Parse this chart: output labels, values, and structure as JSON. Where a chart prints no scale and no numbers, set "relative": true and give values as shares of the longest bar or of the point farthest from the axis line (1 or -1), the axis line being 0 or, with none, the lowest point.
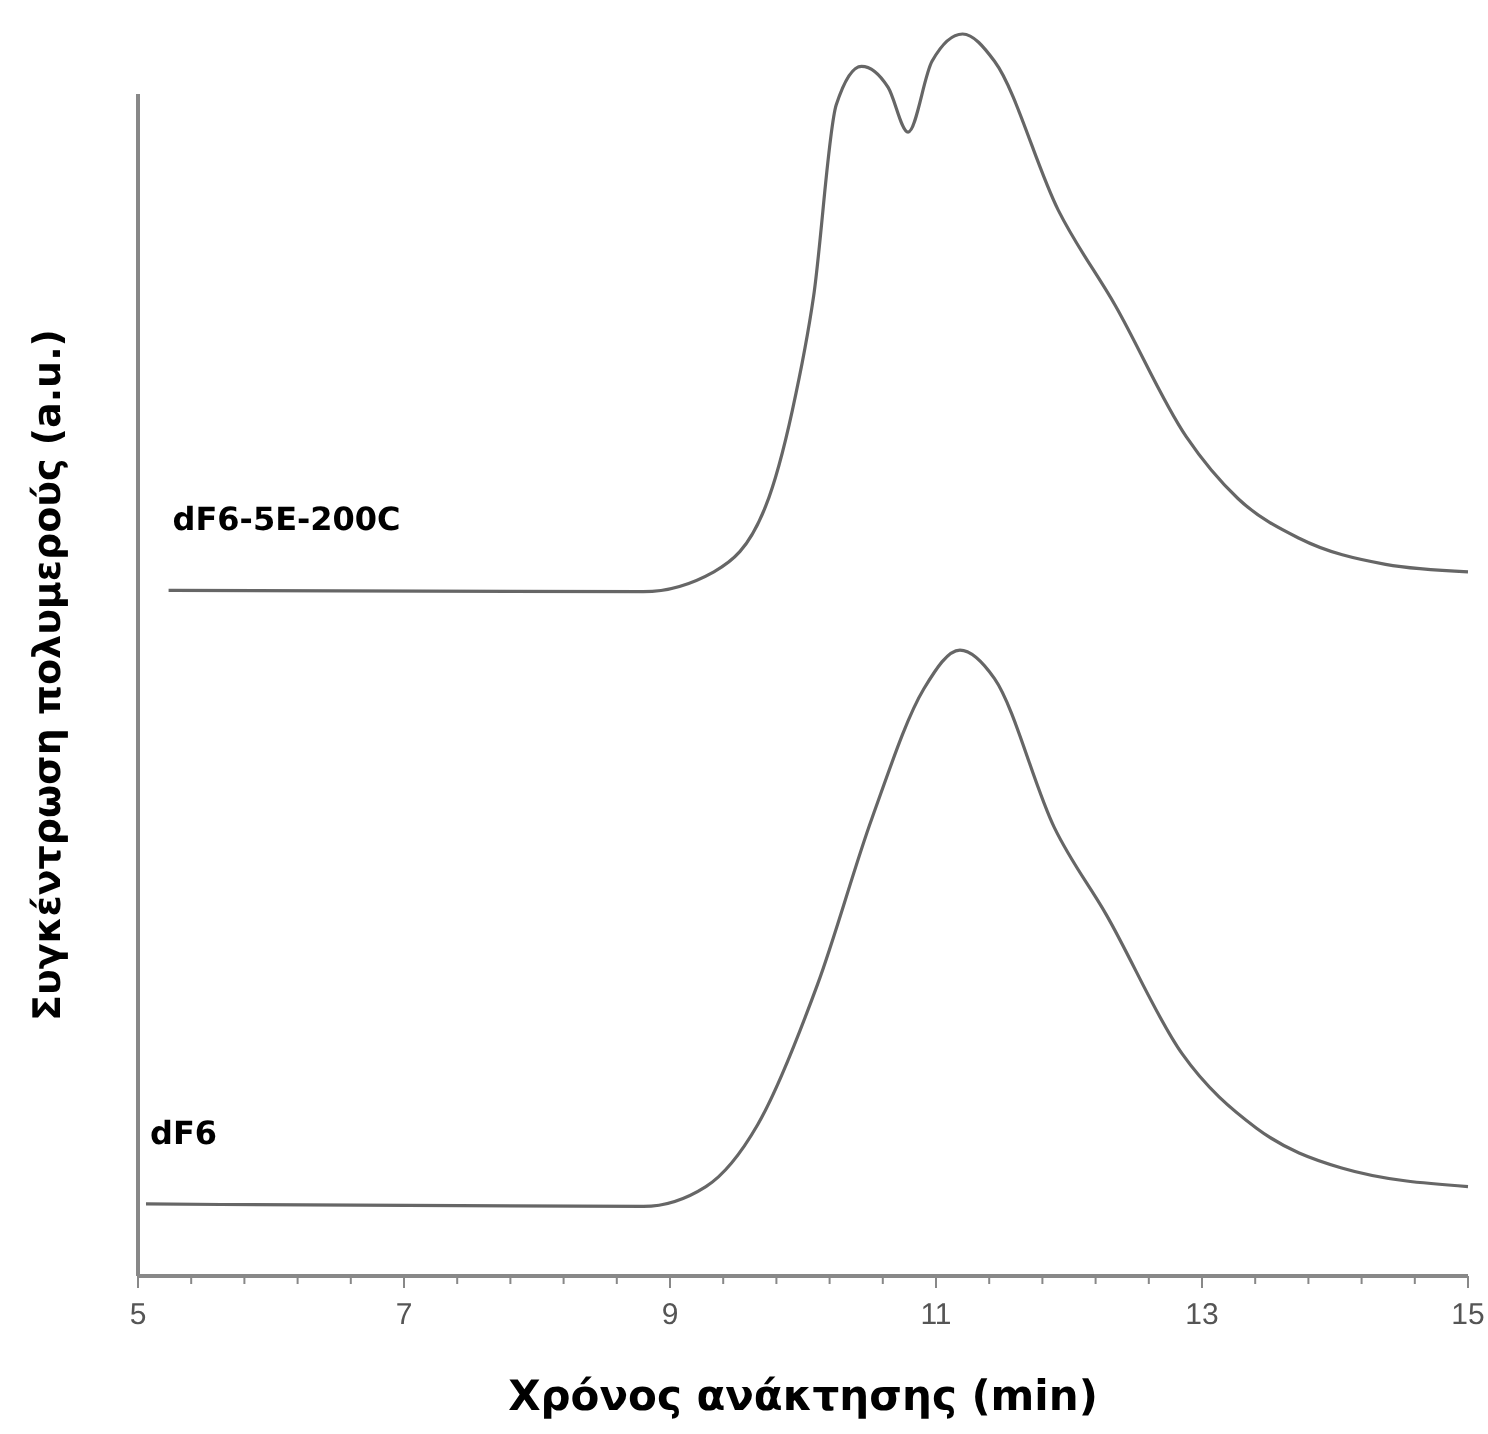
{
  "chart_data": {
    "type": "line",
    "relative": true,
    "xlabel": "Χρόνος ανάκτησης (min)",
    "ylabel": "Συγκέντρωση πολυμερούς (a.u.)",
    "xlim": [
      5,
      15
    ],
    "xticks": [
      5,
      {
        "value": 5.4,
        "label": null
      },
      {
        "value": 5.8,
        "label": null
      },
      {
        "value": 6.2,
        "label": null
      },
      {
        "value": 6.6,
        "label": null
      },
      7,
      {
        "value": 7.4,
        "label": null
      },
      {
        "value": 7.8,
        "label": null
      },
      {
        "value": 8.2,
        "label": null
      },
      {
        "value": 8.6,
        "label": null
      },
      9,
      {
        "value": 9.4,
        "label": null
      },
      {
        "value": 9.8,
        "label": null
      },
      {
        "value": 10.2,
        "label": null
      },
      {
        "value": 10.6,
        "label": null
      },
      11,
      {
        "value": 11.4,
        "label": null
      },
      {
        "value": 11.8,
        "label": null
      },
      {
        "value": 12.2,
        "label": null
      },
      {
        "value": 12.6,
        "label": null
      },
      13,
      {
        "value": 13.4,
        "label": null
      },
      {
        "value": 13.8,
        "label": null
      },
      {
        "value": 14.2,
        "label": null
      },
      {
        "value": 14.6,
        "label": null
      },
      15
    ],
    "grid": false,
    "marker": "none",
    "line_style": "solid",
    "series": [
      {
        "name": "dF6-5E-200C",
        "color": "#666666",
        "x": [
          5.23,
          8.8,
          9.33,
          9.72,
          9.92,
          10.08,
          10.25,
          10.44,
          10.64,
          10.79,
          10.97,
          11.2,
          11.44,
          11.92,
          12.35,
          12.88,
          13.27,
          13.73,
          14.38,
          15
        ],
        "values": [
          0.552,
          0.551,
          0.567,
          0.62,
          0.697,
          0.789,
          0.943,
          0.974,
          0.957,
          0.921,
          0.978,
          1,
          0.978,
          0.858,
          0.781,
          0.676,
          0.626,
          0.594,
          0.573,
          0.567
        ]
      },
      {
        "name": "dF6",
        "color": "#666666",
        "x": [
          5.06,
          8.8,
          9.27,
          9.66,
          10.11,
          10.52,
          10.91,
          11.18,
          11.44,
          11.89,
          12.28,
          12.85,
          13.41,
          14.05,
          15
        ],
        "values": [
          0.058,
          0.056,
          0.072,
          0.122,
          0.235,
          0.369,
          0.473,
          0.504,
          0.481,
          0.361,
          0.291,
          0.179,
          0.119,
          0.087,
          0.072
        ]
      }
    ]
  }
}
